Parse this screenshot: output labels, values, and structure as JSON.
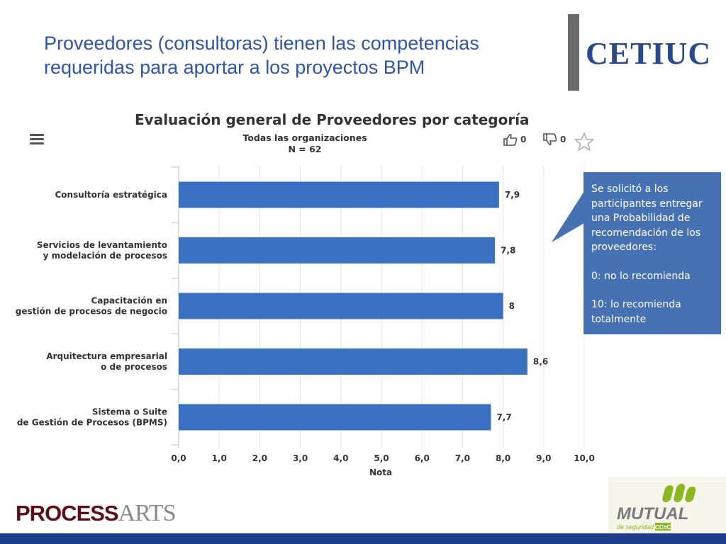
{
  "slide": {
    "title_line1": "Proveedores (consultoras) tienen las competencias",
    "title_line2": "requeridas para aportar a los proyectos BPM"
  },
  "logos": {
    "cetiuc": "CETIUC",
    "process_bold": "PROCESS",
    "process_light": "ARTS",
    "mutual": "MUTUAL",
    "mutual_sub": "de seguridad",
    "mutual_badge": "CChC"
  },
  "chart_header": {
    "likes": "0",
    "dislikes": "0"
  },
  "callout": {
    "p1": "Se solicitó a los participantes entregar una Probabilidad de recomendación de los proveedores:",
    "p2": "0: no lo recomienda",
    "p3": "10: lo recomienda totalmente"
  },
  "colors": {
    "bar": "#3a70c0",
    "title": "#2f55a4",
    "callout": "#4672b3",
    "footer": "#1c3f8c"
  },
  "chart_data": {
    "type": "bar",
    "orientation": "horizontal",
    "title": "Evaluación general de Proveedores por categoría",
    "subtitle_line1": "Todas las organizaciones",
    "subtitle_line2": "N = 62",
    "categories": [
      [
        "Consultoría estratégica"
      ],
      [
        "Servicios de levantamiento",
        "y modelación de procesos"
      ],
      [
        "Capacitación en",
        "gestión de procesos de negocio"
      ],
      [
        "Arquitectura empresarial",
        "o de procesos"
      ],
      [
        "Sistema o Suite",
        "de Gestión de Procesos (BPMS)"
      ]
    ],
    "values": [
      7.9,
      7.8,
      8,
      8.6,
      7.7
    ],
    "value_labels": [
      "7,9",
      "7,8",
      "8",
      "8,6",
      "7,7"
    ],
    "xlabel": "Nota",
    "xlim": [
      0,
      10
    ],
    "xticks": [
      "0,0",
      "1,0",
      "2,0",
      "3,0",
      "4,0",
      "5,0",
      "6,0",
      "7,0",
      "8,0",
      "9,0",
      "10,0"
    ],
    "grid": true
  }
}
